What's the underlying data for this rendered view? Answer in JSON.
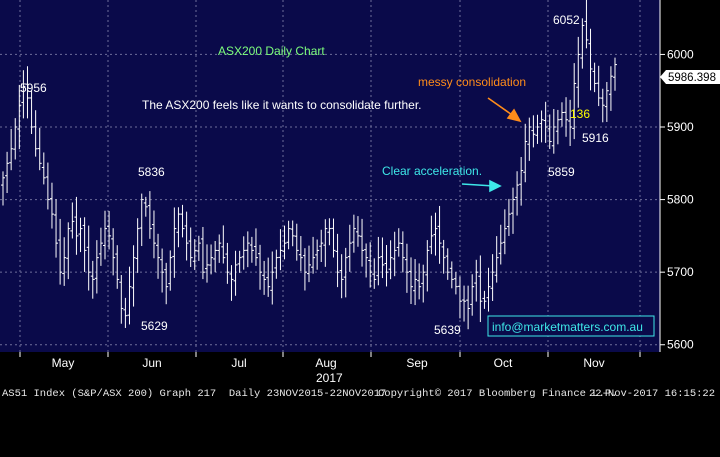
{
  "chart_data": {
    "type": "ohlc",
    "title": "ASX200 Daily Chart",
    "ylim": [
      5590,
      6075
    ],
    "yticks": [
      5600,
      5700,
      5800,
      5900,
      6000
    ],
    "x_ticks": [
      "May",
      "Jun",
      "Jul",
      "Aug",
      "Sep",
      "Oct",
      "Nov"
    ],
    "x_year_label": "2017",
    "last_price_label": "5986.398",
    "colors": {
      "background": "#0a0a4a",
      "grid": "#6e6e9a",
      "bars": "#ffffff",
      "title": "#7dff7d",
      "orange": "#ff8c1a",
      "cyan": "#3ee8e8",
      "yellow": "#ffff00"
    },
    "annotations": {
      "commentary": "The ASX200 feels like it wants to consolidate further.",
      "messy": "messy consolidation",
      "clear": "Clear acceleration.",
      "count": "136",
      "watermark": "info@marketmatters.com.au"
    },
    "point_labels": [
      "5956",
      "5836",
      "5629",
      "5639",
      "5859",
      "6052",
      "5916"
    ],
    "closes": [
      5830,
      5850,
      5870,
      5900,
      5930,
      5956,
      5940,
      5900,
      5870,
      5850,
      5830,
      5800,
      5780,
      5740,
      5700,
      5720,
      5760,
      5770,
      5750,
      5760,
      5730,
      5700,
      5690,
      5720,
      5740,
      5760,
      5750,
      5720,
      5690,
      5650,
      5640,
      5680,
      5720,
      5760,
      5800,
      5790,
      5760,
      5740,
      5720,
      5700,
      5680,
      5720,
      5760,
      5780,
      5760,
      5740,
      5720,
      5730,
      5740,
      5700,
      5710,
      5720,
      5730,
      5740,
      5720,
      5700,
      5690,
      5710,
      5720,
      5730,
      5740,
      5730,
      5720,
      5700,
      5690,
      5680,
      5700,
      5720,
      5730,
      5740,
      5760,
      5750,
      5730,
      5720,
      5700,
      5710,
      5720,
      5730,
      5740,
      5760,
      5760,
      5730,
      5700,
      5690,
      5720,
      5740,
      5760,
      5750,
      5730,
      5720,
      5700,
      5690,
      5720,
      5710,
      5700,
      5720,
      5730,
      5740,
      5720,
      5700,
      5680,
      5690,
      5680,
      5700,
      5730,
      5750,
      5760,
      5740,
      5720,
      5700,
      5690,
      5680,
      5660,
      5660,
      5650,
      5680,
      5700,
      5660,
      5660,
      5680,
      5700,
      5720,
      5740,
      5760,
      5780,
      5800,
      5820,
      5840,
      5880,
      5900,
      5890,
      5900,
      5910,
      5900,
      5880,
      5900,
      5910,
      5920,
      5910,
      5900,
      5960,
      6000,
      6040,
      6020,
      5980,
      5960,
      5940,
      5930,
      5950,
      5970,
      5986
    ]
  },
  "footer": {
    "left": "AS51 Index (S&P/ASX 200) Graph 217  Daily 23NOV2015-22NOV2017",
    "middle": "Copyright© 2017 Bloomberg Finance L.P.",
    "right": "22-Nov-2017 16:15:22"
  }
}
